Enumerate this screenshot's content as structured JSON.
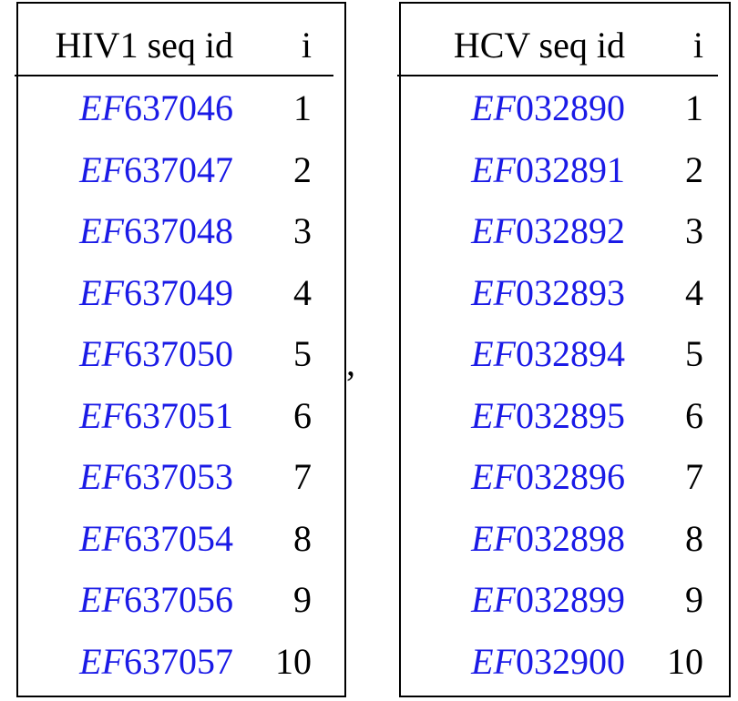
{
  "tables": [
    {
      "header": [
        "HIV1 seq id",
        "i"
      ],
      "rows": [
        [
          "EF637046",
          1
        ],
        [
          "EF637047",
          2
        ],
        [
          "EF637048",
          3
        ],
        [
          "EF637049",
          4
        ],
        [
          "EF637050",
          5
        ],
        [
          "EF637051",
          6
        ],
        [
          "EF637053",
          7
        ],
        [
          "EF637054",
          8
        ],
        [
          "EF637056",
          9
        ],
        [
          "EF637057",
          10
        ]
      ]
    },
    {
      "header": [
        "HCV seq id",
        "i"
      ],
      "rows": [
        [
          "EF032890",
          1
        ],
        [
          "EF032891",
          2
        ],
        [
          "EF032892",
          3
        ],
        [
          "EF032893",
          4
        ],
        [
          "EF032894",
          5
        ],
        [
          "EF032895",
          6
        ],
        [
          "EF032896",
          7
        ],
        [
          "EF032898",
          8
        ],
        [
          "EF032899",
          9
        ],
        [
          "EF032900",
          10
        ]
      ]
    }
  ],
  "separator": ","
}
